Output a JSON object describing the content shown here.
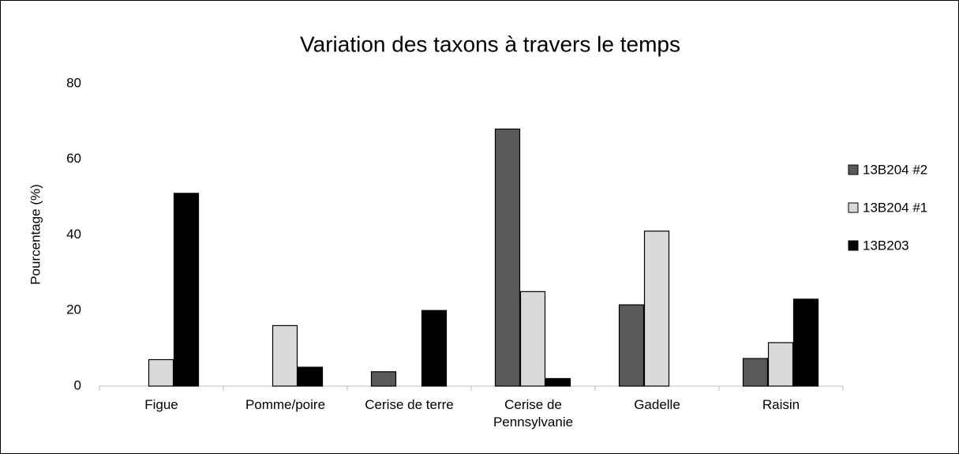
{
  "chart_data": {
    "type": "bar",
    "title": "Variation des taxons à travers le temps",
    "ylabel": "Pourcentage (%)",
    "categories": [
      "Figue",
      "Pomme/poire",
      "Cerise de terre",
      "Cerise de Pennsylvanie",
      "Gadelle",
      "Raisin"
    ],
    "series": [
      {
        "name": "13B204 #2",
        "color": "#595959",
        "values": [
          0,
          0,
          3.8,
          68,
          21.5,
          7.3
        ]
      },
      {
        "name": "13B204 #1",
        "color": "#d9d9d9",
        "values": [
          7,
          16,
          0,
          25,
          41,
          11.5
        ]
      },
      {
        "name": "13B203",
        "color": "#000000",
        "values": [
          51,
          5,
          20,
          2,
          0,
          23
        ]
      }
    ],
    "ylim": [
      0,
      80
    ],
    "yticks": [
      0,
      20,
      40,
      60,
      80
    ],
    "grid": false,
    "legend": "right"
  }
}
